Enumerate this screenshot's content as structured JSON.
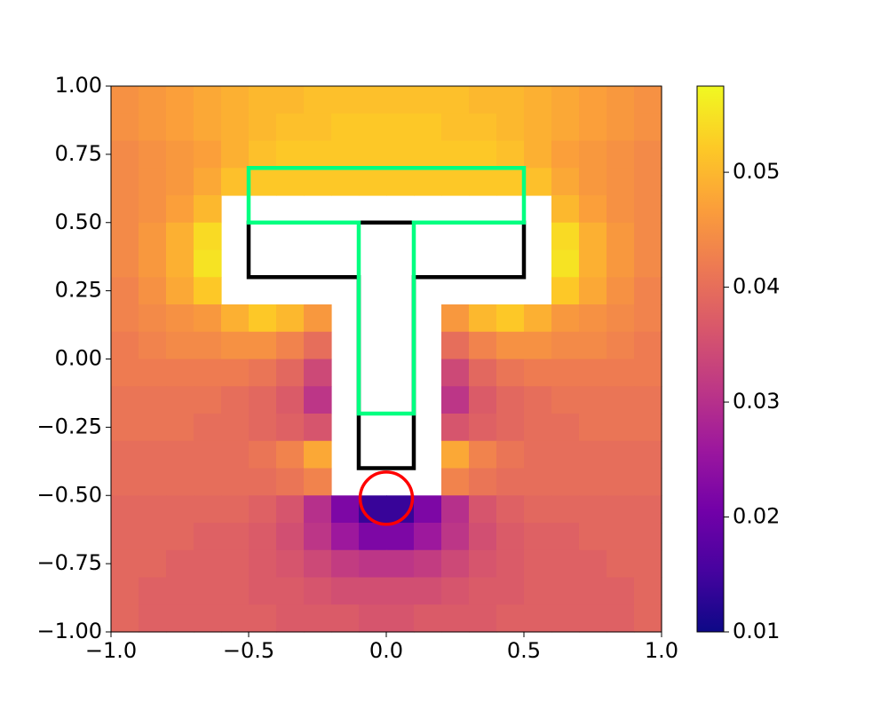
{
  "chart_data": {
    "type": "heatmap",
    "xlim": [
      -1,
      1
    ],
    "ylim": [
      -1,
      1
    ],
    "xticks": [
      {
        "value": -1,
        "label": "−1.0"
      },
      {
        "value": -0.5,
        "label": "−0.5"
      },
      {
        "value": 0,
        "label": "0.0"
      },
      {
        "value": 0.5,
        "label": "0.5"
      },
      {
        "value": 1,
        "label": "1.0"
      }
    ],
    "yticks": [
      {
        "value": -1,
        "label": "−1.00"
      },
      {
        "value": -0.75,
        "label": "−0.75"
      },
      {
        "value": -0.5,
        "label": "−0.50"
      },
      {
        "value": -0.25,
        "label": "−0.25"
      },
      {
        "value": 0,
        "label": "0.00"
      },
      0.25,
      {
        "value": 0.5,
        "label": "0.50"
      },
      0.75,
      {
        "value": 1,
        "label": "1.00"
      }
    ],
    "clim": [
      0.01,
      0.0575
    ],
    "cticks": [
      0.01,
      0.02,
      0.03,
      0.04,
      0.05
    ],
    "colormap": [
      "#0d0887",
      "#46039f",
      "#7201a8",
      "#9c179e",
      "#bd3786",
      "#d8576b",
      "#ed7953",
      "#fb9f3a",
      "#fdca26",
      "#f0f921"
    ],
    "z": [
      [
        0.045,
        0.046,
        0.047,
        0.048,
        0.049,
        0.05,
        0.05,
        0.051,
        0.051,
        0.051,
        0.051,
        0.051,
        0.051,
        0.05,
        0.05,
        0.049,
        0.048,
        0.047,
        0.046,
        0.045
      ],
      [
        0.045,
        0.046,
        0.047,
        0.048,
        0.049,
        0.05,
        0.051,
        0.051,
        0.052,
        0.052,
        0.052,
        0.052,
        0.051,
        0.051,
        0.05,
        0.049,
        0.048,
        0.047,
        0.046,
        0.045
      ],
      [
        0.044,
        0.045,
        0.046,
        0.047,
        0.049,
        0.051,
        0.052,
        0.052,
        0.052,
        0.052,
        0.052,
        0.052,
        0.052,
        0.052,
        0.051,
        0.049,
        0.047,
        0.046,
        0.045,
        0.044
      ],
      [
        0.044,
        0.045,
        0.046,
        0.048,
        0.051,
        0.052,
        0.052,
        0.052,
        0.052,
        0.052,
        0.052,
        0.052,
        0.052,
        0.052,
        0.052,
        0.051,
        0.048,
        0.046,
        0.045,
        0.044
      ],
      [
        0.044,
        0.045,
        0.047,
        0.05,
        null,
        null,
        null,
        null,
        null,
        null,
        null,
        null,
        null,
        null,
        null,
        null,
        0.05,
        0.047,
        0.045,
        0.044
      ],
      [
        0.044,
        0.046,
        0.049,
        0.054,
        null,
        null,
        null,
        null,
        null,
        null,
        null,
        null,
        null,
        null,
        null,
        null,
        0.054,
        0.049,
        0.046,
        0.044
      ],
      [
        0.044,
        0.046,
        0.049,
        0.055,
        null,
        null,
        null,
        null,
        null,
        null,
        null,
        null,
        null,
        null,
        null,
        null,
        0.055,
        0.049,
        0.046,
        0.044
      ],
      [
        0.043,
        0.045,
        0.048,
        0.052,
        null,
        null,
        null,
        null,
        null,
        null,
        null,
        null,
        null,
        null,
        null,
        null,
        0.052,
        0.048,
        0.045,
        0.043
      ],
      [
        0.043,
        0.044,
        0.045,
        0.046,
        0.049,
        0.052,
        0.05,
        0.046,
        null,
        null,
        null,
        null,
        0.046,
        0.05,
        0.052,
        0.049,
        0.046,
        0.045,
        0.044,
        0.043
      ],
      [
        0.042,
        0.043,
        0.044,
        0.044,
        0.045,
        0.045,
        0.043,
        0.04,
        null,
        null,
        null,
        null,
        0.04,
        0.043,
        0.045,
        0.045,
        0.044,
        0.044,
        0.043,
        0.042
      ],
      [
        0.042,
        0.042,
        0.042,
        0.042,
        0.042,
        0.041,
        0.039,
        0.034,
        null,
        null,
        null,
        null,
        0.034,
        0.039,
        0.041,
        0.042,
        0.042,
        0.042,
        0.042,
        0.042
      ],
      [
        0.041,
        0.041,
        0.041,
        0.041,
        0.04,
        0.039,
        0.037,
        0.031,
        null,
        null,
        null,
        null,
        0.031,
        0.037,
        0.039,
        0.04,
        0.041,
        0.041,
        0.041,
        0.041
      ],
      [
        0.041,
        0.041,
        0.041,
        0.04,
        0.04,
        0.039,
        0.038,
        0.036,
        null,
        null,
        null,
        null,
        0.036,
        0.038,
        0.039,
        0.04,
        0.04,
        0.041,
        0.041,
        0.041
      ],
      [
        0.04,
        0.04,
        0.04,
        0.04,
        0.04,
        0.041,
        0.043,
        0.048,
        null,
        null,
        null,
        null,
        0.048,
        0.043,
        0.041,
        0.04,
        0.04,
        0.04,
        0.04,
        0.04
      ],
      [
        0.04,
        0.04,
        0.04,
        0.04,
        0.04,
        0.04,
        0.041,
        0.043,
        null,
        null,
        null,
        null,
        0.043,
        0.041,
        0.04,
        0.04,
        0.04,
        0.04,
        0.04,
        0.04
      ],
      [
        0.039,
        0.039,
        0.039,
        0.039,
        0.039,
        0.038,
        0.036,
        0.03,
        0.022,
        0.014,
        0.014,
        0.022,
        0.03,
        0.036,
        0.038,
        0.039,
        0.039,
        0.039,
        0.039,
        0.039
      ],
      [
        0.039,
        0.039,
        0.039,
        0.038,
        0.038,
        0.037,
        0.035,
        0.031,
        0.026,
        0.022,
        0.022,
        0.026,
        0.031,
        0.035,
        0.037,
        0.038,
        0.038,
        0.039,
        0.039,
        0.039
      ],
      [
        0.039,
        0.039,
        0.038,
        0.038,
        0.038,
        0.037,
        0.036,
        0.034,
        0.032,
        0.031,
        0.031,
        0.032,
        0.034,
        0.036,
        0.037,
        0.038,
        0.038,
        0.038,
        0.039,
        0.039
      ],
      [
        0.039,
        0.038,
        0.038,
        0.038,
        0.038,
        0.037,
        0.037,
        0.036,
        0.035,
        0.035,
        0.035,
        0.035,
        0.036,
        0.037,
        0.037,
        0.038,
        0.038,
        0.038,
        0.038,
        0.039
      ],
      [
        0.039,
        0.038,
        0.038,
        0.038,
        0.038,
        0.038,
        0.037,
        0.037,
        0.037,
        0.036,
        0.036,
        0.037,
        0.037,
        0.037,
        0.038,
        0.038,
        0.038,
        0.038,
        0.038,
        0.039
      ]
    ],
    "shapes": [
      {
        "type": "polygon",
        "color": "#000000",
        "points": [
          [
            -0.5,
            0.5
          ],
          [
            0.5,
            0.5
          ],
          [
            0.5,
            0.3
          ],
          [
            0.1,
            0.3
          ],
          [
            0.1,
            -0.4
          ],
          [
            -0.1,
            -0.4
          ],
          [
            -0.1,
            0.3
          ],
          [
            -0.5,
            0.3
          ]
        ]
      },
      {
        "type": "polygon",
        "color": "#00ff80",
        "points": [
          [
            -0.5,
            0.7
          ],
          [
            0.5,
            0.7
          ],
          [
            0.5,
            0.5
          ],
          [
            0.1,
            0.5
          ],
          [
            0.1,
            -0.2
          ],
          [
            -0.1,
            -0.2
          ],
          [
            -0.1,
            0.5
          ],
          [
            -0.5,
            0.5
          ]
        ]
      },
      {
        "type": "circle",
        "color": "#ff0000",
        "center": [
          0,
          -0.51
        ],
        "radius": 0.095
      }
    ]
  }
}
